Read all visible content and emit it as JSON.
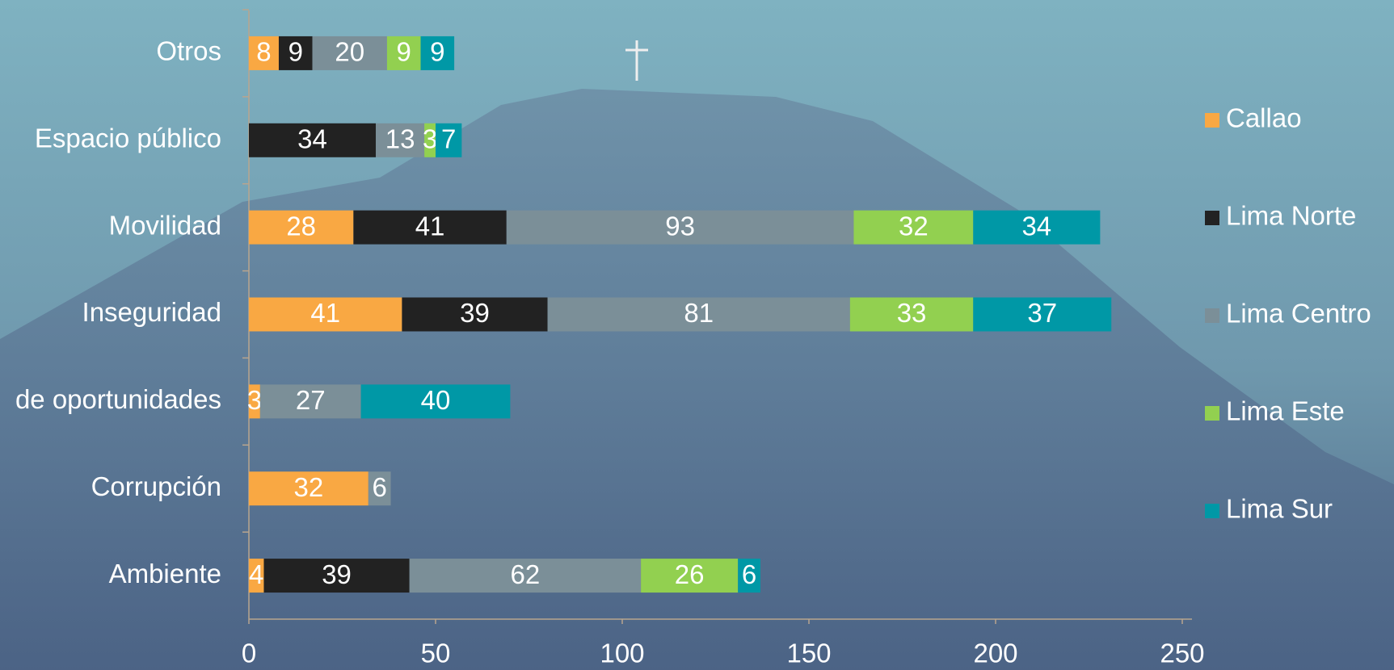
{
  "chart_data": {
    "type": "stacked-bar-horizontal",
    "categories": [
      "Otros",
      "Espacio público",
      "Movilidad",
      "Inseguridad",
      "de oportunidades",
      "Corrupción",
      "Ambiente"
    ],
    "series": [
      {
        "name": "Callao",
        "color": "#f9a843",
        "values": [
          8,
          null,
          28,
          41,
          3,
          32,
          4
        ]
      },
      {
        "name": "Lima Norte",
        "color": "#222222",
        "values": [
          9,
          34,
          41,
          39,
          null,
          null,
          39
        ]
      },
      {
        "name": "Lima Centro",
        "color": "#7b8f98",
        "values": [
          20,
          13,
          93,
          81,
          27,
          6,
          62
        ]
      },
      {
        "name": "Lima Este",
        "color": "#92d050",
        "values": [
          9,
          3,
          32,
          33,
          null,
          null,
          26
        ]
      },
      {
        "name": "Lima Sur",
        "color": "#0098a6",
        "values": [
          9,
          7,
          34,
          37,
          40,
          null,
          6
        ]
      }
    ],
    "xlim": [
      0,
      250
    ],
    "xticks": [
      0,
      50,
      100,
      150,
      200,
      250
    ],
    "legend": "right"
  }
}
